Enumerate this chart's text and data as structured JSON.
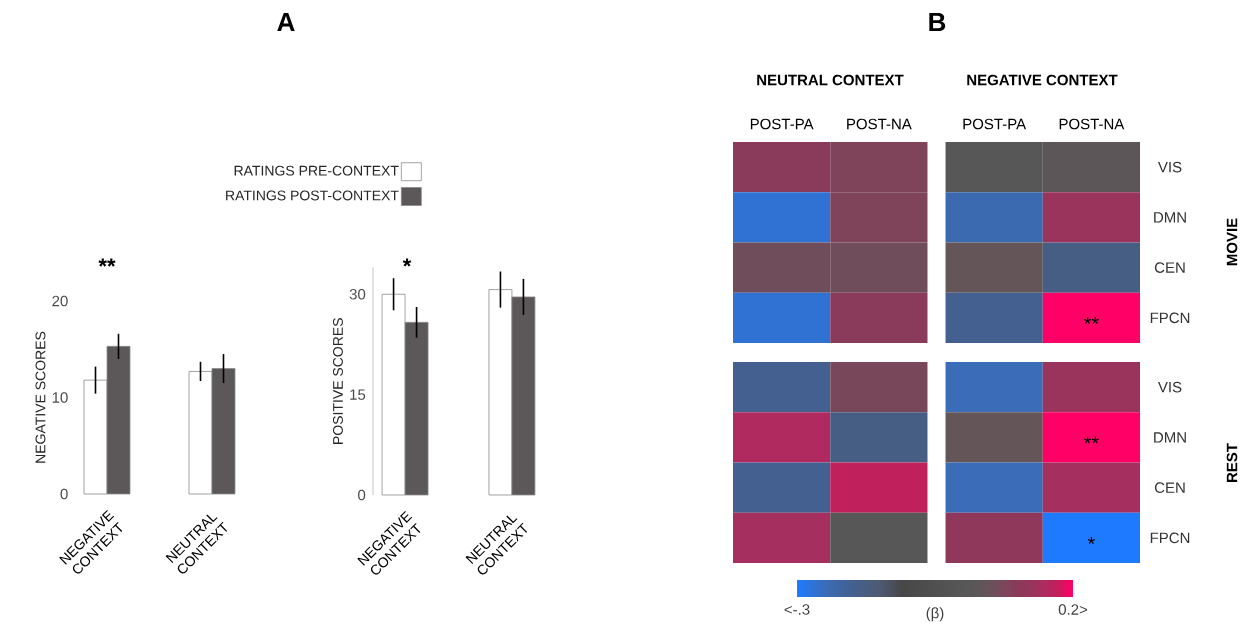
{
  "chart_data": [
    {
      "type": "bar",
      "ylabel": "NEGATIVE SCORES",
      "categories": [
        "NEGATIVE CONTEXT",
        "NEUTRAL CONTEXT"
      ],
      "series": [
        {
          "name": "RATINGS PRE-CONTEXT",
          "color": "#ffffff",
          "values": [
            11.8,
            12.7
          ],
          "errors": [
            1.4,
            1.0
          ]
        },
        {
          "name": "RATINGS POST-CONTEXT",
          "color": "#5c5759",
          "values": [
            15.3,
            13.0
          ],
          "errors": [
            1.3,
            1.5
          ]
        }
      ],
      "ylim": [
        0,
        20
      ],
      "yticks": [
        0,
        10,
        20
      ],
      "legend": "top",
      "annotations": [
        "A",
        "**"
      ]
    },
    {
      "type": "bar",
      "ylabel": "POSITIVE SCORES",
      "categories": [
        "NEGATIVE CONTEXT",
        "NEUTRAL CONTEXT"
      ],
      "series": [
        {
          "color": "#ffffff",
          "values": [
            30.0,
            30.7
          ],
          "errors": [
            2.4,
            2.7
          ]
        },
        {
          "color": "#5c5759",
          "values": [
            25.8,
            29.6
          ],
          "errors": [
            2.3,
            2.7
          ]
        }
      ],
      "ylim": [
        0,
        34
      ],
      "yticks": [
        0,
        15,
        30
      ],
      "annotations": [
        "*"
      ]
    },
    {
      "type": "heatmap",
      "categories": [
        "POST-PA",
        "POST-NA",
        "POST-PA",
        "POST-NA"
      ],
      "y_categories": [
        "VIS",
        "DMN",
        "CEN",
        "FPCN",
        "VIS",
        "DMN",
        "CEN",
        "FPCN"
      ],
      "cells": [
        [
          0.1,
          0.08,
          0.0,
          0.03
        ],
        [
          -0.27,
          0.08,
          -0.24,
          0.13
        ],
        [
          0.06,
          0.06,
          0.04,
          -0.18
        ],
        [
          -0.27,
          0.1,
          -0.2,
          0.2
        ],
        [
          -0.2,
          0.07,
          -0.25,
          0.13
        ],
        [
          0.15,
          -0.18,
          0.04,
          0.2
        ],
        [
          -0.2,
          0.17,
          -0.25,
          0.14
        ],
        [
          0.14,
          0.0,
          0.11,
          -0.3
        ]
      ],
      "cell_labels": [
        [
          null,
          null,
          null,
          null
        ],
        [
          null,
          null,
          null,
          null
        ],
        [
          null,
          null,
          null,
          null
        ],
        [
          null,
          null,
          null,
          "**"
        ],
        [
          null,
          null,
          null,
          null
        ],
        [
          null,
          null,
          null,
          "**"
        ],
        [
          null,
          null,
          null,
          null
        ],
        [
          null,
          null,
          null,
          "*"
        ]
      ],
      "clim": [
        -0.3,
        0.2
      ],
      "clabel": "(β)",
      "cticks": [
        {
          "value": -0.3,
          "label": "<-.3"
        },
        {
          "value": 0.2,
          "label": "0.2>"
        }
      ],
      "annotations": [
        "B",
        "NEUTRAL CONTEXT",
        "NEGATIVE CONTEXT",
        "MOVIE",
        "REST"
      ]
    }
  ]
}
